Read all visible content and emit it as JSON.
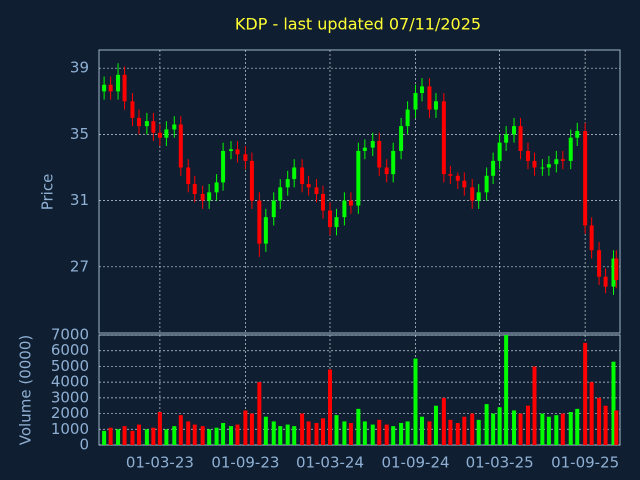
{
  "chart_data": {
    "type": "candlestick",
    "title": "KDP - last updated 07/11/2025",
    "ylabel": "Price",
    "volume_label": "Volume (0000)",
    "up_color": "#00ff00",
    "down_color": "#ff0000",
    "grid": true,
    "xlim": [
      "2022-10-21",
      "2025-11-15"
    ],
    "xticks": [
      {
        "value": "2023-03-01",
        "label": "01-03-23"
      },
      {
        "value": "2023-09-01",
        "label": "01-09-23"
      },
      {
        "value": "2024-03-01",
        "label": "01-03-24"
      },
      {
        "value": "2024-09-01",
        "label": "01-09-24"
      },
      {
        "value": "2025-03-01",
        "label": "01-03-25"
      },
      {
        "value": "2025-09-01",
        "label": "01-09-25"
      }
    ],
    "ylim": [
      23,
      40.1
    ],
    "yticks": [
      27,
      31,
      35,
      39
    ],
    "volume_ylim": [
      0,
      7000
    ],
    "volume_yticks": [
      0,
      1000,
      2000,
      3000,
      4000,
      5000,
      6000,
      7000
    ],
    "x": [
      "2022-11-01",
      "2022-11-15",
      "2022-12-01",
      "2022-12-15",
      "2023-01-01",
      "2023-01-15",
      "2023-02-01",
      "2023-02-15",
      "2023-03-01",
      "2023-03-15",
      "2023-04-01",
      "2023-04-15",
      "2023-05-01",
      "2023-05-15",
      "2023-06-01",
      "2023-06-15",
      "2023-07-01",
      "2023-07-15",
      "2023-08-01",
      "2023-08-15",
      "2023-09-01",
      "2023-09-15",
      "2023-10-01",
      "2023-10-15",
      "2023-11-01",
      "2023-11-15",
      "2023-12-01",
      "2023-12-15",
      "2024-01-01",
      "2024-01-15",
      "2024-02-01",
      "2024-02-15",
      "2024-03-01",
      "2024-03-15",
      "2024-04-01",
      "2024-04-15",
      "2024-05-01",
      "2024-05-15",
      "2024-06-01",
      "2024-06-15",
      "2024-07-01",
      "2024-07-15",
      "2024-08-01",
      "2024-08-15",
      "2024-09-01",
      "2024-09-15",
      "2024-10-01",
      "2024-10-15",
      "2024-11-01",
      "2024-11-15",
      "2024-12-01",
      "2024-12-15",
      "2025-01-01",
      "2025-01-15",
      "2025-02-01",
      "2025-02-15",
      "2025-03-01",
      "2025-03-15",
      "2025-04-01",
      "2025-04-15",
      "2025-05-01",
      "2025-05-15",
      "2025-06-01",
      "2025-06-15",
      "2025-07-01",
      "2025-07-15",
      "2025-08-01",
      "2025-08-15",
      "2025-09-01",
      "2025-09-15",
      "2025-10-01",
      "2025-10-15",
      "2025-11-01",
      "2025-11-07"
    ],
    "open": [
      37.6,
      38.0,
      37.6,
      38.6,
      37.0,
      36.0,
      35.5,
      35.8,
      35.1,
      34.8,
      35.3,
      35.6,
      33.0,
      32.0,
      31.4,
      31.0,
      31.5,
      32.1,
      34.0,
      34.1,
      33.8,
      33.4,
      31.0,
      28.4,
      30.0,
      31.0,
      31.8,
      32.3,
      33.0,
      32.0,
      31.8,
      31.4,
      30.4,
      29.4,
      30.0,
      31.0,
      30.7,
      34.0,
      34.2,
      34.6,
      33.0,
      32.6,
      34.0,
      35.5,
      36.5,
      37.5,
      37.9,
      36.5,
      37.0,
      32.6,
      32.5,
      32.2,
      31.8,
      31.0,
      31.5,
      32.5,
      33.4,
      34.5,
      35.0,
      35.5,
      34.0,
      33.4,
      33.0,
      33.0,
      33.2,
      33.5,
      33.4,
      34.8,
      35.2,
      29.5,
      28.0,
      26.4,
      25.8,
      27.5
    ],
    "high": [
      38.5,
      38.5,
      39.3,
      39.1,
      37.5,
      36.5,
      36.3,
      36.3,
      35.6,
      35.8,
      36.1,
      36.1,
      33.5,
      32.5,
      31.9,
      32.0,
      32.6,
      34.5,
      34.6,
      34.6,
      34.3,
      33.9,
      31.5,
      30.5,
      31.5,
      32.3,
      32.8,
      33.5,
      33.5,
      32.5,
      32.3,
      31.9,
      30.9,
      30.5,
      31.5,
      31.5,
      34.5,
      34.7,
      35.1,
      35.1,
      33.5,
      34.5,
      36.0,
      37.0,
      38.0,
      38.4,
      38.4,
      37.5,
      37.5,
      33.1,
      32.7,
      32.7,
      32.3,
      32.0,
      33.0,
      33.9,
      35.0,
      35.5,
      36.0,
      36.0,
      34.5,
      33.9,
      33.5,
      33.7,
      34.0,
      34.0,
      35.3,
      35.7,
      35.7,
      30.0,
      28.5,
      26.9,
      28.0,
      28.0
    ],
    "low": [
      37.1,
      37.1,
      37.1,
      36.5,
      35.5,
      35.0,
      35.0,
      34.6,
      34.3,
      34.3,
      34.8,
      32.5,
      31.5,
      30.9,
      30.5,
      30.5,
      31.0,
      31.6,
      33.5,
      33.3,
      32.9,
      30.5,
      27.6,
      27.9,
      29.5,
      30.5,
      31.3,
      31.8,
      31.5,
      31.3,
      30.9,
      29.9,
      28.9,
      28.9,
      29.5,
      30.2,
      30.2,
      33.5,
      33.7,
      32.5,
      32.1,
      32.1,
      33.5,
      35.0,
      36.0,
      37.0,
      36.0,
      36.0,
      32.1,
      32.0,
      31.7,
      31.3,
      30.5,
      30.5,
      31.0,
      32.0,
      32.9,
      34.0,
      34.5,
      33.5,
      32.9,
      32.5,
      32.5,
      32.5,
      32.7,
      32.9,
      32.9,
      34.3,
      29.0,
      27.5,
      25.9,
      25.4,
      25.3,
      25.7
    ],
    "close": [
      38.0,
      37.6,
      38.6,
      37.0,
      36.0,
      35.5,
      35.8,
      35.1,
      34.8,
      35.3,
      35.6,
      33.0,
      32.0,
      31.4,
      31.0,
      31.5,
      32.1,
      34.0,
      34.1,
      33.8,
      33.4,
      31.0,
      28.4,
      30.0,
      31.0,
      31.8,
      32.3,
      33.0,
      32.0,
      31.8,
      31.4,
      30.4,
      29.4,
      30.0,
      31.0,
      30.7,
      34.0,
      34.2,
      34.6,
      33.0,
      32.6,
      34.0,
      35.5,
      36.5,
      37.5,
      37.9,
      36.5,
      37.0,
      32.6,
      32.5,
      32.2,
      31.8,
      31.0,
      31.5,
      32.5,
      33.4,
      34.5,
      35.0,
      35.5,
      34.0,
      33.4,
      33.0,
      33.0,
      33.2,
      33.5,
      33.4,
      34.8,
      35.2,
      29.5,
      28.0,
      26.4,
      25.8,
      27.5,
      26.2
    ],
    "volume": [
      900,
      1100,
      1000,
      1200,
      900,
      1300,
      1000,
      1100,
      2100,
      1000,
      1200,
      1900,
      1500,
      1300,
      1200,
      1000,
      1100,
      1400,
      1200,
      1300,
      2200,
      2000,
      4000,
      1800,
      1500,
      1200,
      1300,
      1200,
      2000,
      1500,
      1400,
      1700,
      4800,
      1900,
      1500,
      1400,
      2300,
      1500,
      1300,
      1600,
      1300,
      1200,
      1400,
      1500,
      5500,
      1800,
      1500,
      2500,
      3000,
      1600,
      1400,
      1800,
      2000,
      1600,
      2600,
      2000,
      2400,
      7000,
      2200,
      2000,
      2500,
      5000,
      2000,
      1800,
      1900,
      2000,
      2100,
      2300,
      6500,
      4000,
      3000,
      2500,
      5300,
      2200
    ]
  }
}
